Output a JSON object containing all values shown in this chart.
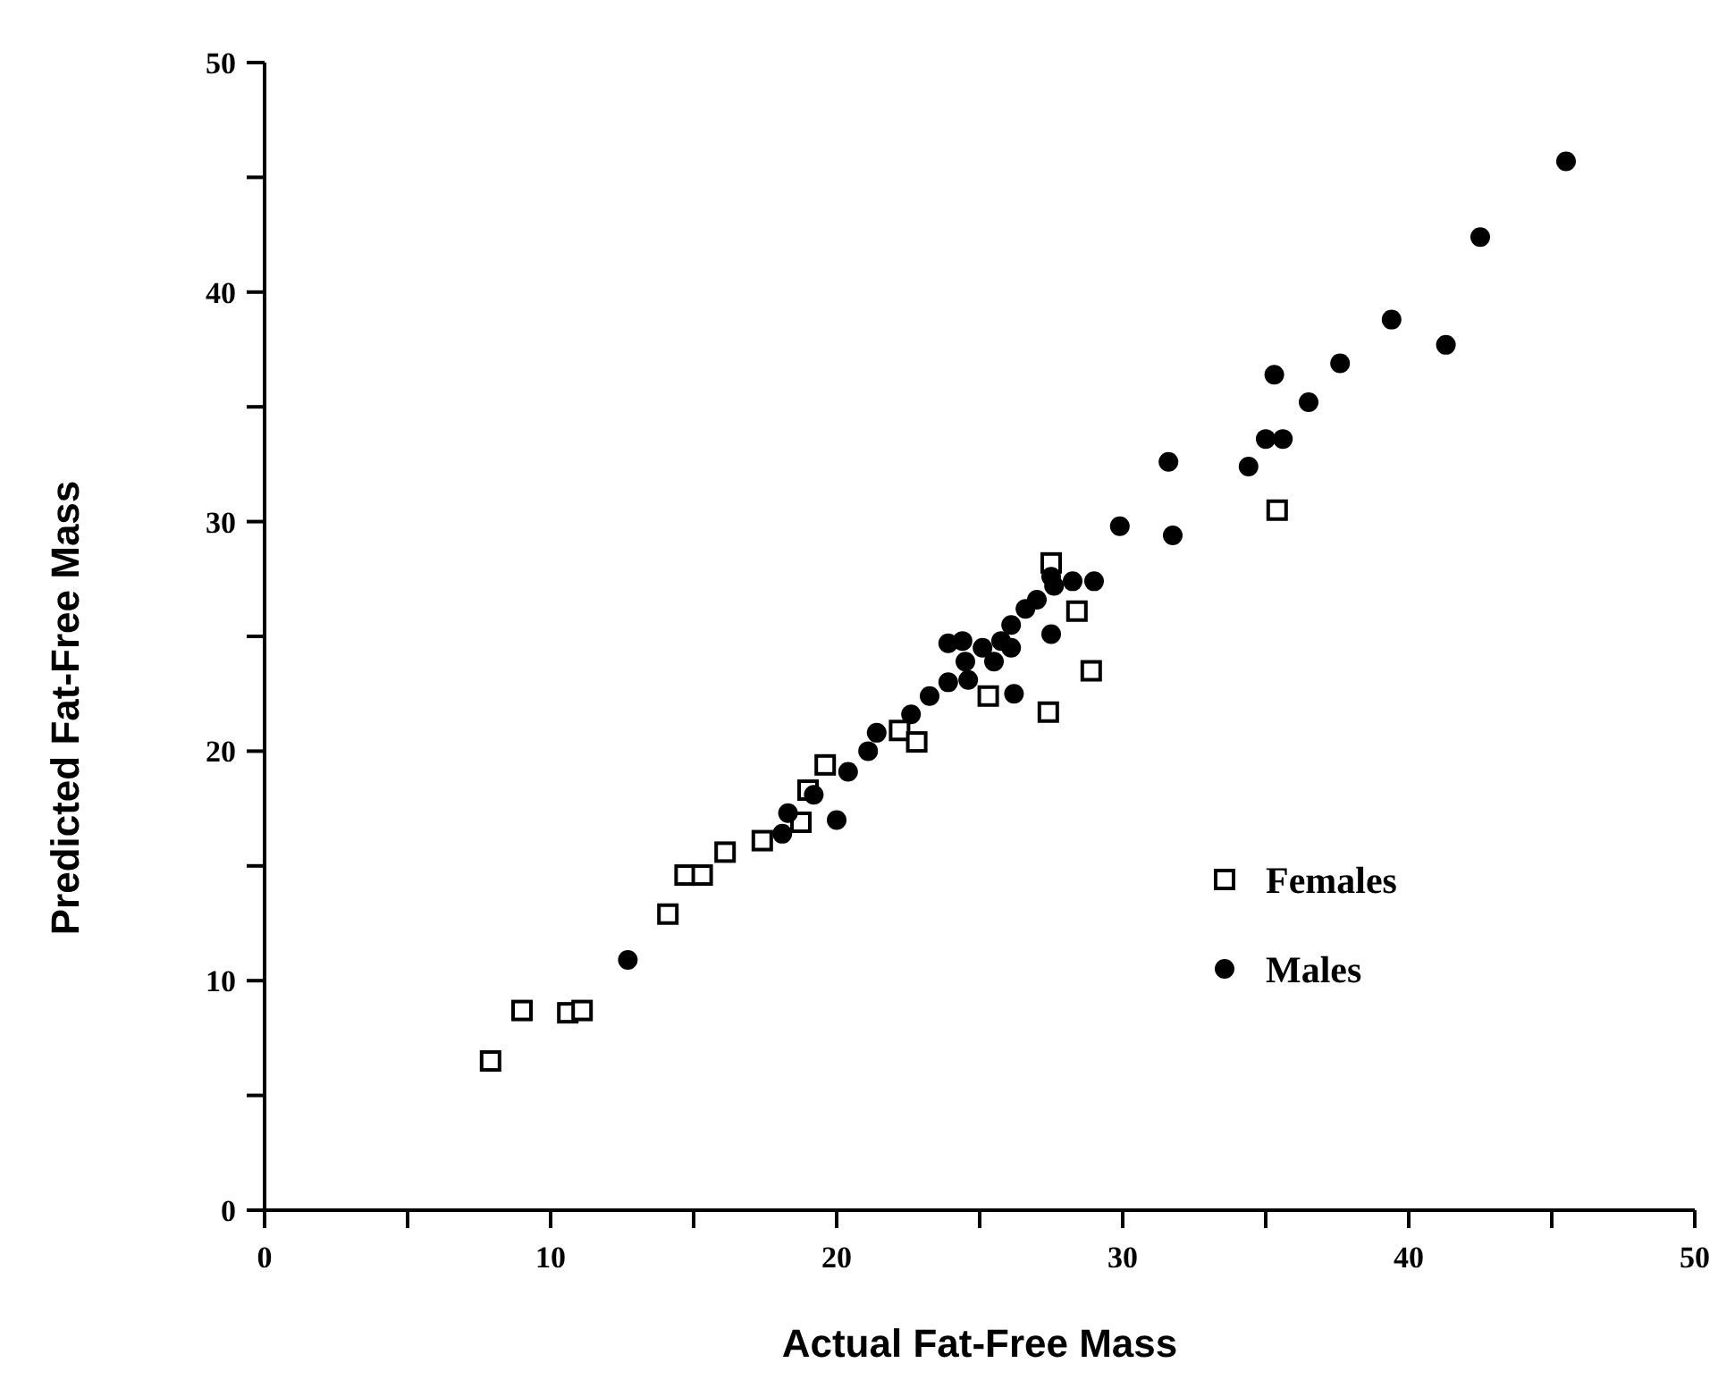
{
  "chart_data": {
    "type": "scatter",
    "xlabel": "Actual Fat-Free Mass",
    "ylabel": "Predicted Fat-Free Mass",
    "xlim": [
      0,
      50
    ],
    "ylim": [
      0,
      50
    ],
    "xticks": [
      0,
      {
        "value": 5,
        "label": null
      },
      10,
      {
        "value": 15,
        "label": null
      },
      20,
      {
        "value": 25,
        "label": null
      },
      30,
      {
        "value": 35,
        "label": null
      },
      40,
      {
        "value": 45,
        "label": null
      },
      50
    ],
    "yticks": [
      0,
      {
        "value": 5,
        "label": null
      },
      10,
      {
        "value": 15,
        "label": null
      },
      20,
      {
        "value": 25,
        "label": null
      },
      30,
      {
        "value": 35,
        "label": null
      },
      40,
      {
        "value": 45,
        "label": null
      },
      50
    ],
    "grid": false,
    "legend": "right",
    "series": [
      {
        "name": "Females",
        "color": "#000000",
        "marker": "square",
        "x": [
          7.9,
          9.0,
          10.6,
          11.1,
          14.1,
          14.7,
          15.3,
          16.1,
          17.4,
          18.75,
          19.0,
          19.6,
          22.2,
          22.8,
          25.3,
          27.5,
          28.9,
          27.4,
          28.4,
          35.4
        ],
        "values": [
          6.5,
          8.7,
          8.6,
          8.7,
          12.9,
          14.6,
          14.6,
          15.6,
          16.1,
          16.9,
          18.3,
          19.4,
          20.9,
          20.4,
          22.4,
          28.2,
          23.5,
          21.7,
          26.1,
          30.5
        ]
      },
      {
        "name": "Males",
        "color": "#000000",
        "marker": "circle",
        "x": [
          12.7,
          18.1,
          20.0,
          18.3,
          19.2,
          20.4,
          21.1,
          21.4,
          22.6,
          23.25,
          23.9,
          24.5,
          25.1,
          25.75,
          26.1,
          26.6,
          27.0,
          27.6,
          28.25,
          29.0,
          26.1,
          26.2,
          24.6,
          23.9,
          24.4,
          25.5,
          27.5,
          27.5,
          29.9,
          31.75,
          31.6,
          34.4,
          35.0,
          35.6,
          36.5,
          35.3,
          37.6,
          39.4,
          41.3,
          42.5,
          45.5
        ],
        "values": [
          10.9,
          16.4,
          17.0,
          17.3,
          18.1,
          19.1,
          20.0,
          20.8,
          21.6,
          22.4,
          23.0,
          23.9,
          24.5,
          24.8,
          25.5,
          26.2,
          26.6,
          27.2,
          27.4,
          27.4,
          24.5,
          22.5,
          23.1,
          24.7,
          24.8,
          23.9,
          25.1,
          27.6,
          29.8,
          29.4,
          32.6,
          32.4,
          33.6,
          33.6,
          35.2,
          36.4,
          36.9,
          38.8,
          37.7,
          42.4,
          45.7
        ]
      }
    ]
  }
}
